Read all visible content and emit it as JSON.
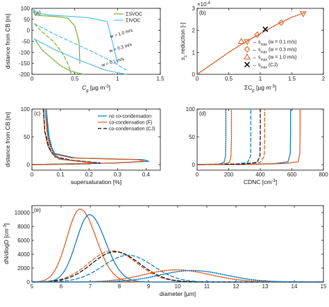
{
  "colors": {
    "svoc": "#77ac30",
    "ivoc": "#4dbeee",
    "blue": "#0072bd",
    "orange": "#d95319",
    "black": "#000000"
  },
  "chart_data": [
    {
      "id": "a",
      "panel_label": "(a)",
      "type": "line",
      "xlabel_main": "C",
      "xlabel_sub": "g",
      "xlabel_unit": " [µg m",
      "xlabel_sup": "-3",
      "xlabel_end": "]",
      "ylabel": "distance from CB [m]",
      "xlim": [
        0,
        1.5
      ],
      "ylim": [
        -200,
        100
      ],
      "xticks": [
        "0",
        "0.5",
        "1",
        "1.5"
      ],
      "yticks": [
        "-200",
        "-150",
        "-100",
        "-50",
        "0",
        "50",
        "100"
      ],
      "legend": [
        "ΣSVOC",
        "ΣIVOC"
      ],
      "annotations": [
        "w = 1.0 m/s",
        "w = 0.3 m/s",
        "w = 0.1 m/s"
      ],
      "series": [
        {
          "group": "svoc",
          "dash": "solid",
          "x": [
            0.02,
            0.02,
            0.05,
            0.3,
            0.42,
            0.5,
            0.55,
            0.56
          ],
          "y": [
            100,
            80,
            68,
            62,
            55,
            20,
            -50,
            -150
          ]
        },
        {
          "group": "svoc",
          "dash": "dash",
          "x": [
            0.03,
            0.1,
            0.25,
            0.35,
            0.42,
            0.46
          ],
          "y": [
            30,
            0,
            -50,
            -100,
            -150,
            -200
          ]
        },
        {
          "group": "svoc",
          "dash": "dot",
          "x": [
            0.03,
            0.12,
            0.24,
            0.33,
            0.45,
            0.6
          ],
          "y": [
            -40,
            -90,
            -130,
            -160,
            -185,
            -200
          ]
        },
        {
          "group": "ivoc",
          "dash": "solid",
          "x": [
            0.02,
            0.03,
            0.2,
            0.65,
            0.88,
            0.97,
            1.0
          ],
          "y": [
            100,
            80,
            70,
            58,
            40,
            -100,
            -150
          ]
        },
        {
          "group": "ivoc",
          "dash": "dash",
          "x": [
            0.03,
            0.25,
            0.5,
            0.75,
            0.95,
            1.1
          ],
          "y": [
            30,
            -15,
            -60,
            -105,
            -145,
            -180
          ]
        },
        {
          "group": "ivoc",
          "dash": "dot",
          "x": [
            0.03,
            0.25,
            0.55,
            0.85,
            1.1
          ],
          "y": [
            -40,
            -85,
            -135,
            -180,
            -200
          ]
        }
      ]
    },
    {
      "id": "b",
      "panel_label": "(b)",
      "type": "scatter",
      "ylabel_main": "s",
      "ylabel_sub": "c",
      "ylabel_rest": " reduction [-]",
      "y_multiplier_base": "×10",
      "y_multiplier_exp": "-4",
      "xlabel": "ΣC",
      "xlabel_sub": "p",
      "xlabel_unit": " [µg m",
      "xlabel_sup": "-3",
      "xlabel_end": "]",
      "xlim": [
        0,
        2
      ],
      "ylim": [
        0,
        3
      ],
      "xticks": [
        "0",
        "0.5",
        "1",
        "1.5",
        "2"
      ],
      "yticks": [
        "0",
        "1",
        "2",
        "3"
      ],
      "legend": [
        {
          "prefix": "↔ s",
          "sub": "max",
          "suffix": " (w = 0.1 m/s)",
          "marker": "tri-down"
        },
        {
          "prefix": "↔ s",
          "sub": "max",
          "suffix": " (w = 0.3 m/s)",
          "marker": "diamond"
        },
        {
          "prefix": "↔ s",
          "sub": "max",
          "suffix": " (w = 1.0 m/s)",
          "marker": "tri-up"
        },
        {
          "prefix": "↔ s",
          "sub": "max",
          "suffix": " (CJ)",
          "marker": "cross"
        }
      ],
      "curve_x": [
        0,
        0.1,
        0.25,
        0.5,
        0.75,
        1.0,
        1.25,
        1.5,
        1.7
      ],
      "curve_y": [
        0,
        0.2,
        0.5,
        1.0,
        1.45,
        1.85,
        2.25,
        2.6,
        2.8
      ],
      "points": [
        {
          "marker": "tri-down",
          "x": 1.68,
          "y": 2.75
        },
        {
          "marker": "diamond",
          "x": 1.33,
          "y": 2.35
        },
        {
          "marker": "diamond",
          "x": 0.95,
          "y": 1.8
        },
        {
          "marker": "tri-up",
          "x": 0.7,
          "y": 1.5
        },
        {
          "marker": "cross",
          "x": 1.08,
          "y": 2.05
        }
      ]
    },
    {
      "id": "c",
      "panel_label": "(c)",
      "type": "line",
      "xlabel": "supersaturation [%]",
      "ylabel": "distance from CB [m]",
      "xlim": [
        0,
        0.45
      ],
      "ylim": [
        -10,
        100
      ],
      "xticks": [
        "0",
        "0.1",
        "0.2",
        "0.3",
        "0.4"
      ],
      "yticks": [
        "0",
        "50",
        "100"
      ],
      "legend": [
        "no co-condensation",
        "co-condensation (F)",
        "co-condensation (CJ)"
      ],
      "series": [
        {
          "color": "blue",
          "dash": "solid",
          "x": [
            0.05,
            0.055,
            0.065,
            0.08,
            0.15,
            0.3,
            0.39,
            0.41,
            0.3,
            0.0
          ],
          "y": [
            100,
            60,
            35,
            20,
            12,
            10,
            9,
            6,
            3,
            0
          ]
        },
        {
          "color": "orange",
          "dash": "solid",
          "x": [
            0.04,
            0.045,
            0.055,
            0.07,
            0.14,
            0.28,
            0.37,
            0.395,
            0.29,
            0.0
          ],
          "y": [
            100,
            60,
            35,
            20,
            12,
            10,
            9,
            6,
            3,
            0
          ]
        },
        {
          "color": "black",
          "dash": "dash",
          "x": [
            0.04,
            0.045,
            0.06,
            0.08,
            0.14,
            0.2,
            0.24,
            0.2,
            0.0
          ],
          "y": [
            100,
            60,
            30,
            14,
            8,
            5,
            3,
            1.5,
            0
          ]
        },
        {
          "color": "blue",
          "dash": "dot",
          "x": [
            0.05,
            0.06,
            0.075,
            0.1,
            0.17,
            0.23,
            0.2,
            0.0
          ],
          "y": [
            100,
            50,
            20,
            10,
            6,
            3,
            1.5,
            0
          ]
        },
        {
          "color": "orange",
          "dash": "dot",
          "x": [
            0.045,
            0.055,
            0.07,
            0.095,
            0.16,
            0.22,
            0.19,
            0.0
          ],
          "y": [
            100,
            50,
            20,
            10,
            6,
            3,
            1.5,
            0
          ]
        }
      ]
    },
    {
      "id": "d",
      "panel_label": "(d)",
      "type": "line",
      "xlabel": "CDNC [cm",
      "xlabel_sup": "-3",
      "xlabel_end": "]",
      "xlim": [
        0,
        800
      ],
      "ylim": [
        -10,
        100
      ],
      "xticks": [
        "0",
        "200",
        "400",
        "600",
        "800"
      ],
      "yticks": [
        "0",
        "50",
        "100"
      ],
      "series": [
        {
          "color": "blue",
          "dash": "solid",
          "x": [
            0,
            300,
            500,
            575,
            590,
            592,
            592
          ],
          "y": [
            0,
            0.5,
            2,
            5,
            20,
            60,
            100
          ]
        },
        {
          "color": "orange",
          "dash": "solid",
          "x": [
            0,
            340,
            560,
            640,
            650,
            652,
            652
          ],
          "y": [
            0,
            0.5,
            2,
            5,
            20,
            60,
            100
          ]
        },
        {
          "color": "blue",
          "dash": "dash",
          "x": [
            0,
            250,
            320,
            338,
            340,
            340
          ],
          "y": [
            0,
            1,
            4,
            15,
            50,
            100
          ]
        },
        {
          "color": "orange",
          "dash": "dash",
          "x": [
            0,
            300,
            400,
            425,
            428,
            428
          ],
          "y": [
            0,
            1,
            4,
            15,
            50,
            100
          ]
        },
        {
          "color": "black",
          "dash": "dash",
          "x": [
            0,
            290,
            380,
            398,
            400,
            400
          ],
          "y": [
            0,
            1,
            4,
            15,
            50,
            100
          ]
        },
        {
          "color": "blue",
          "dash": "dot",
          "x": [
            0,
            140,
            170,
            180,
            182,
            182
          ],
          "y": [
            0,
            1,
            4,
            15,
            50,
            100
          ]
        },
        {
          "color": "orange",
          "dash": "dot",
          "x": [
            0,
            170,
            205,
            215,
            217,
            217
          ],
          "y": [
            0,
            1,
            4,
            15,
            50,
            100
          ]
        }
      ]
    },
    {
      "id": "e",
      "panel_label": "(e)",
      "type": "line",
      "xlabel": "diameter [µm]",
      "ylabel_main": "dN/dlogD [cm",
      "ylabel_sup": "-3",
      "ylabel_end": "]",
      "xlim": [
        5,
        15
      ],
      "ylim": [
        0,
        11000
      ],
      "xticks": [
        "5",
        "6",
        "7",
        "8",
        "9",
        "10",
        "11",
        "12",
        "13",
        "14",
        "15"
      ],
      "yticks": [
        "0",
        "2000",
        "4000",
        "6000",
        "8000",
        "10000"
      ],
      "peaks": [
        {
          "color": "orange",
          "dash": "solid",
          "mu": 6.65,
          "peak": 10500,
          "wl": 0.45,
          "wr": 0.55
        },
        {
          "color": "blue",
          "dash": "solid",
          "mu": 6.97,
          "peak": 9700,
          "wl": 0.45,
          "wr": 0.55
        },
        {
          "color": "orange",
          "dash": "dash",
          "mu": 7.75,
          "peak": 4500,
          "wl": 0.8,
          "wr": 0.85
        },
        {
          "color": "black",
          "dash": "dash",
          "mu": 7.85,
          "peak": 4350,
          "wl": 0.8,
          "wr": 0.85
        },
        {
          "color": "blue",
          "dash": "dash",
          "mu": 8.3,
          "peak": 3850,
          "wl": 0.85,
          "wr": 0.85
        },
        {
          "color": "orange",
          "dash": "dot",
          "mu": 9.95,
          "peak": 1750,
          "wl": 1.1,
          "wr": 1.15
        },
        {
          "color": "blue",
          "dash": "dot",
          "mu": 10.5,
          "peak": 1650,
          "wl": 1.1,
          "wr": 1.15
        }
      ]
    }
  ]
}
